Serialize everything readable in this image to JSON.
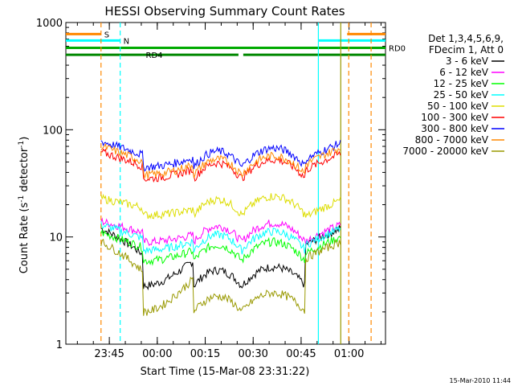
{
  "chart_data": {
    "type": "line",
    "title": "HESSI Observing Summary Count Rates",
    "xlabel": "Start Time (15-Mar-08 23:31:22)",
    "ylabel_main": "Count Rate (s",
    "ylabel_sup1": "-1",
    "ylabel_mid": " detector",
    "ylabel_sup2": "-1",
    "ylabel_end": ")",
    "yscale": "log",
    "ylim": [
      1,
      1000
    ],
    "xlim_minutes": [
      0,
      100
    ],
    "x_ticks": [
      {
        "label": "23:45",
        "minute": 13.6
      },
      {
        "label": "00:00",
        "minute": 28.6
      },
      {
        "label": "00:15",
        "minute": 43.6
      },
      {
        "label": "00:30",
        "minute": 58.6
      },
      {
        "label": "00:45",
        "minute": 73.6
      },
      {
        "label": "01:00",
        "minute": 88.6
      }
    ],
    "y_ticks": [
      {
        "label": "1000",
        "value": 1000
      },
      {
        "label": "100",
        "value": 100
      },
      {
        "label": "10",
        "value": 10
      },
      {
        "label": "1",
        "value": 1
      }
    ],
    "legend_header": [
      "Det 1,3,4,5,6,9,",
      "FDecim 1, Att 0"
    ],
    "legend_placement": "right",
    "footer_date": "15-Mar-2010 11:44",
    "series": [
      {
        "name": "3 - 6 keV",
        "color": "#000000",
        "shape": [
          12,
          3.5,
          3.5,
          12
        ],
        "dip_pts": [
          [
            5,
            20
          ],
          [
            35,
            55
          ],
          [
            80,
            100
          ]
        ]
      },
      {
        "name": "6 - 12 keV",
        "color": "#ff00ff",
        "shape": [
          14,
          9,
          9,
          13
        ],
        "dip_pts": [
          [
            5,
            20
          ],
          [
            35,
            55
          ],
          [
            80,
            100
          ]
        ]
      },
      {
        "name": "12 - 25 keV",
        "color": "#00ff00",
        "shape": [
          11,
          6,
          6,
          10
        ],
        "dip_pts": [
          [
            5,
            20
          ],
          [
            35,
            55
          ],
          [
            80,
            100
          ]
        ]
      },
      {
        "name": "25 - 50 keV",
        "color": "#00ffff",
        "shape": [
          13,
          7.5,
          7.5,
          12
        ],
        "dip_pts": [
          [
            5,
            20
          ],
          [
            35,
            55
          ],
          [
            80,
            100
          ]
        ]
      },
      {
        "name": "50 - 100 keV",
        "color": "#dddd00",
        "shape": [
          23,
          16,
          16,
          22
        ],
        "dip_pts": [
          [
            5,
            20
          ],
          [
            35,
            55
          ],
          [
            80,
            100
          ]
        ]
      },
      {
        "name": "100 - 300 keV",
        "color": "#ff0000",
        "shape": [
          62,
          35,
          35,
          60
        ],
        "dip_pts": [
          [
            5,
            20
          ],
          [
            35,
            55
          ],
          [
            80,
            100
          ]
        ]
      },
      {
        "name": "300 - 800 keV",
        "color": "#0000ff",
        "shape": [
          78,
          45,
          45,
          75
        ],
        "dip_pts": [
          [
            5,
            20
          ],
          [
            35,
            55
          ],
          [
            80,
            100
          ]
        ]
      },
      {
        "name": "800 - 7000 keV",
        "color": "#ff8800",
        "shape": [
          70,
          38,
          38,
          68
        ],
        "dip_pts": [
          [
            5,
            20
          ],
          [
            35,
            55
          ],
          [
            80,
            100
          ]
        ]
      },
      {
        "name": "7000 - 20000 keV",
        "color": "#999900",
        "shape": [
          9,
          2,
          2,
          9
        ],
        "dip_pts": [
          [
            5,
            20
          ],
          [
            35,
            55
          ],
          [
            80,
            100
          ]
        ]
      }
    ],
    "flags": [
      {
        "label": "S",
        "color": "#ff8800",
        "value": 780,
        "segments": [
          [
            0,
            11
          ],
          [
            88,
            100
          ]
        ]
      },
      {
        "label": "N",
        "color": "#00ffff",
        "value": 680,
        "segments": [
          [
            0,
            17
          ],
          [
            79,
            100
          ]
        ]
      },
      {
        "label": "RD0",
        "color": "#00aa00",
        "value": 580,
        "segments": [
          [
            0,
            100
          ]
        ]
      },
      {
        "label": "RD4",
        "color": "#008800",
        "value": 500,
        "segments": [
          [
            0,
            24
          ],
          [
            24,
            54
          ],
          [
            55.5,
            75
          ],
          [
            75,
            100
          ]
        ]
      }
    ],
    "vlines": [
      {
        "minute": 11,
        "color": "#ff8800",
        "dashed": true
      },
      {
        "minute": 17,
        "color": "#00ffff",
        "dashed": true
      },
      {
        "minute": 79,
        "color": "#00ffff",
        "dashed": false
      },
      {
        "minute": 86,
        "color": "#999900",
        "dashed": false
      },
      {
        "minute": 95.5,
        "color": "#ff8800",
        "dashed": true
      },
      {
        "minute": 88.5,
        "color": "#ff8800",
        "dashed": true
      }
    ]
  }
}
